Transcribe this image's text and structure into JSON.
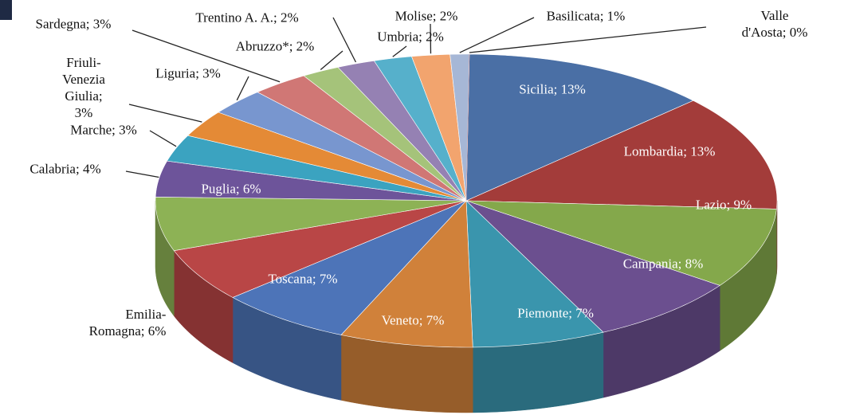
{
  "chart_data": {
    "type": "pie3d",
    "values": [
      13,
      13,
      9,
      8,
      7,
      7,
      7,
      6,
      6,
      4,
      3,
      3,
      3,
      3,
      2,
      2,
      2,
      2,
      1,
      0
    ],
    "value_labels": [
      "Sicilia; 13%",
      "Lombardia; 13%",
      "Lazio; 9%",
      "Campania; 8%",
      "Piemonte; 7%",
      "Veneto; 7%",
      "Toscana; 7%",
      "Emilia-\nRomagna; 6%",
      "Puglia; 6%",
      "Calabria; 4%",
      "Marche; 3%",
      "Friuli-\nVenezia\nGiulia;\n3%",
      "Liguria; 3%",
      "Sardegna; 3%",
      "Abruzzo*; 2%",
      "Trentino A. A.; 2%",
      "Umbria; 2%",
      "Molise; 2%",
      "Basilicata; 1%",
      "Valle d'Aosta; 0%"
    ],
    "colors": [
      "#4a6fa5",
      "#a33c3a",
      "#84a84b",
      "#6b4f8f",
      "#3a95ad",
      "#d0813a",
      "#4d74b8",
      "#b94646",
      "#8db255",
      "#6d549a",
      "#3ba3c0",
      "#e48a36",
      "#7896cf",
      "#d07775",
      "#a5c37a",
      "#9581b3",
      "#56b0cb",
      "#f2a46e",
      "#a6b7d6",
      "#d8a0a0"
    ]
  }
}
